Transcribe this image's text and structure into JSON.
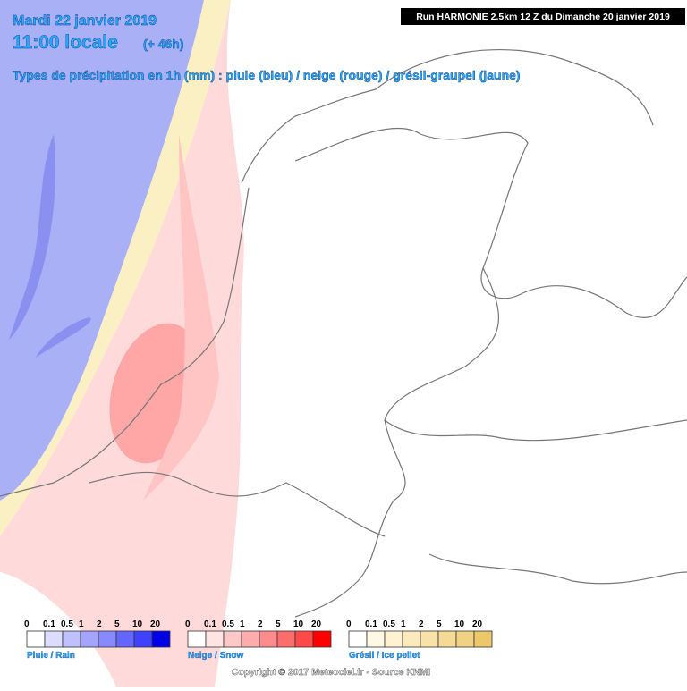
{
  "header": {
    "date": "Mardi 22 janvier 2019",
    "time": "11:00 locale",
    "lead": "(+ 46h)",
    "run": "Run HARMONIE 2.5km 12 Z du Dimanche 20 janvier 2019",
    "subtitle": "Types de précipitation en 1h (mm) : pluie (bleu) / neige (rouge) / grésil-graupel (jaune)"
  },
  "legends": [
    {
      "label": "Pluie / Rain",
      "ticks": [
        0,
        0.1,
        0.5,
        1,
        2,
        5,
        10,
        20
      ],
      "colors": [
        "#ffffff",
        "#dcdcff",
        "#c0c0ff",
        "#a4a4ff",
        "#8888ff",
        "#6464ff",
        "#4040ff",
        "#0000e6"
      ]
    },
    {
      "label": "Neige / Snow",
      "ticks": [
        0,
        0.1,
        0.5,
        1,
        2,
        5,
        10,
        20
      ],
      "colors": [
        "#ffffff",
        "#ffe4e4",
        "#ffc8c8",
        "#ffacac",
        "#ff8c8c",
        "#ff6c6c",
        "#ff4848",
        "#ff0000"
      ]
    },
    {
      "label": "Grésil / Ice pellet",
      "ticks": [
        0,
        0.1,
        0.5,
        1,
        2,
        5,
        10,
        20
      ],
      "colors": [
        "#ffffff",
        "#fff8e4",
        "#fff2d0",
        "#fdeabc",
        "#f9e2a8",
        "#f5da96",
        "#f1d284",
        "#ecc868"
      ]
    }
  ],
  "copyright": "Copyright © 2017 Meteociel.fr - Source KNMI"
}
